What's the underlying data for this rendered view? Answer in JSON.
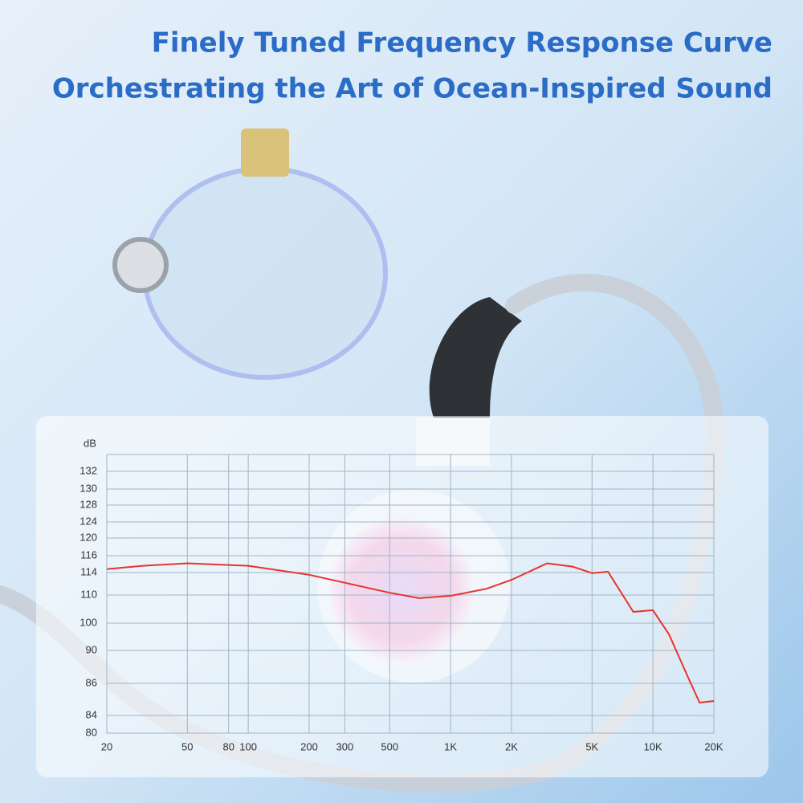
{
  "chart_data": {
    "type": "line",
    "title": "Finely Tuned Frequency Response Curve",
    "subtitle": "Orchestrating the Art of Ocean-Inspired Sound",
    "y_label": "dB",
    "x_scale": "log",
    "grid": true,
    "xlim": [
      20,
      20000
    ],
    "xticks": [
      20,
      50,
      80,
      100,
      200,
      300,
      500,
      {
        "value": 1000,
        "label": "1K"
      },
      {
        "value": 2000,
        "label": "2K"
      },
      {
        "value": 5000,
        "label": "5K"
      },
      {
        "value": 10000,
        "label": "10K"
      },
      {
        "value": 20000,
        "label": "20K"
      }
    ],
    "ylim": [
      80,
      132
    ],
    "yticks": [
      80,
      84,
      86,
      90,
      100,
      110,
      114,
      116,
      120,
      124,
      128,
      130,
      132
    ],
    "x": [
      20,
      30,
      50,
      100,
      200,
      500,
      700,
      1000,
      1500,
      2000,
      3000,
      4000,
      5000,
      6000,
      8000,
      10000,
      12000,
      15000,
      17000,
      20000
    ],
    "series": [
      {
        "color": "#e8322c",
        "values": [
          114.4,
          114.8,
          115.1,
          114.8,
          113.6,
          110.4,
          108.9,
          109.7,
          111.1,
          112.7,
          115.1,
          114.7,
          113.9,
          114.1,
          104,
          104.6,
          95.9,
          86.6,
          84.8,
          84.9
        ]
      }
    ]
  }
}
